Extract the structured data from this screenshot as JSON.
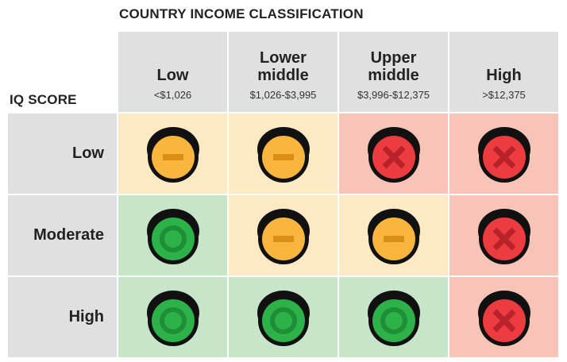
{
  "title": "COUNTRY INCOME CLASSIFICATION",
  "row_axis_title": "IQ SCORE",
  "columns": [
    {
      "name": "Low",
      "range": "<$1,026"
    },
    {
      "name": "Lower\nmiddle",
      "range": "$1,026-$3,995"
    },
    {
      "name": "Upper\nmiddle",
      "range": "$3,996-$12,375"
    },
    {
      "name": "High",
      "range": ">$12,375"
    }
  ],
  "rows": [
    {
      "name": "Low",
      "cells": [
        "neutral",
        "neutral",
        "bad",
        "bad"
      ]
    },
    {
      "name": "Moderate",
      "cells": [
        "good",
        "neutral",
        "neutral",
        "bad"
      ]
    },
    {
      "name": "High",
      "cells": [
        "good",
        "good",
        "good",
        "bad"
      ]
    }
  ],
  "icons": {
    "good": "green-circle-icon",
    "neutral": "yellow-minus-icon",
    "bad": "red-x-icon"
  },
  "colors": {
    "header_bg": "#e0e0e0",
    "good_bg": "#c7e5c9",
    "neutral_bg": "#fde9c4",
    "bad_bg": "#f8c4b8",
    "good_fill": "#2db24a",
    "neutral_fill": "#f9b53c",
    "bad_fill": "#ec3c3f"
  }
}
